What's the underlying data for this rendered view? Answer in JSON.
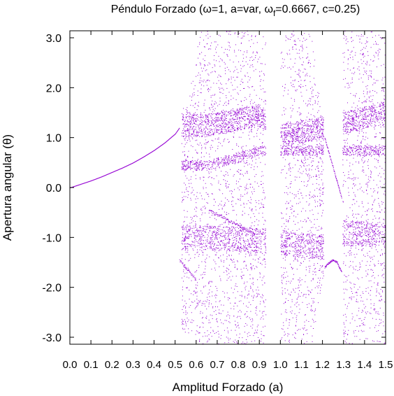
{
  "chart_data": {
    "type": "scatter",
    "title_parts": {
      "pre": "Péndulo Forzado (",
      "omega": "ω",
      "part1": "=1, a=var, ",
      "omega_f": "ω",
      "sub": "f",
      "part2": "=0.6667, c=0.25)"
    },
    "xlabel": "Amplitud Forzado (a)",
    "ylabel": "Apertura angular (θ)",
    "xlim": [
      0.0,
      1.5
    ],
    "ylim": [
      -3.14,
      3.14
    ],
    "xticks": [
      "0.0",
      "0.1",
      "0.2",
      "0.3",
      "0.4",
      "0.5",
      "0.6",
      "0.7",
      "0.8",
      "0.9",
      "1.0",
      "1.1",
      "1.2",
      "1.3",
      "1.4",
      "1.5"
    ],
    "yticks": [
      "3.0",
      "2.0",
      "1.0",
      "0.0",
      "-1.0",
      "-2.0",
      "-3.0"
    ],
    "grid": false,
    "point_color": "#9400d3",
    "series": [
      {
        "regime": "periodic-branch",
        "x": [
          0.0,
          0.05,
          0.1,
          0.15,
          0.2,
          0.25,
          0.3,
          0.35,
          0.4,
          0.45,
          0.5,
          0.52
        ],
        "y": [
          0.0,
          0.07,
          0.14,
          0.22,
          0.31,
          0.4,
          0.5,
          0.62,
          0.75,
          0.9,
          1.08,
          1.2
        ]
      },
      {
        "regime": "chaotic-bands",
        "x": [
          0.55,
          0.62,
          0.65,
          0.7,
          0.75,
          0.8,
          0.85,
          0.9,
          1.0,
          1.05,
          1.1,
          1.15,
          1.2,
          1.3,
          1.35,
          1.4,
          1.45,
          1.5
        ],
        "y_min": [
          -2.9,
          -3.14,
          -3.14,
          -3.14,
          -3.14,
          -3.14,
          -3.14,
          -3.14,
          -3.14,
          -3.14,
          -3.14,
          -3.14,
          -1.8,
          -3.14,
          -3.14,
          -3.14,
          -3.14,
          -3.14
        ],
        "y_max": [
          1.6,
          3.14,
          3.14,
          3.14,
          3.14,
          3.14,
          3.14,
          3.14,
          3.14,
          3.14,
          3.14,
          3.14,
          1.2,
          3.14,
          3.14,
          3.14,
          3.14,
          3.14
        ]
      },
      {
        "regime": "periodic-window-1.25",
        "x": [
          1.21,
          1.23,
          1.25,
          1.27,
          1.29
        ],
        "y_upper": [
          1.0,
          0.7,
          0.4,
          0.1,
          -0.2
        ],
        "y_lower": [
          -1.6,
          -1.5,
          -1.45,
          -1.5,
          -1.7
        ]
      }
    ]
  }
}
